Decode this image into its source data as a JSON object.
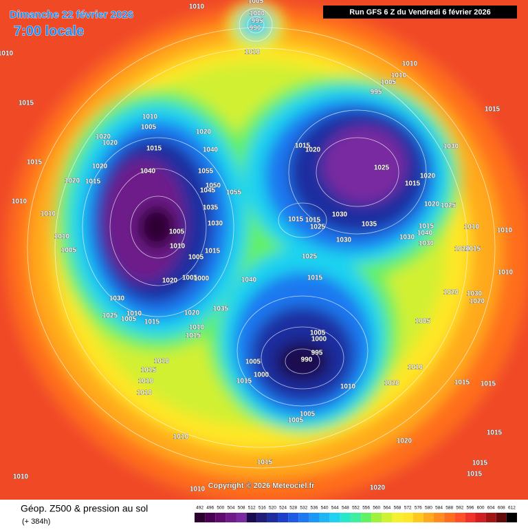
{
  "header": {
    "date": "Dimanche 22 février 2026",
    "time": "7:00 locale",
    "run": "Run GFS 6 Z du Vendredi 6 février 2026"
  },
  "copyright": "Copyright © 2026 Meteociel.fr",
  "legend": {
    "title": "Géop. Z500 & pression au sol",
    "lead_time": "(+ 384h)",
    "colorbar": {
      "values": [
        492,
        496,
        500,
        504,
        508,
        512,
        516,
        520,
        524,
        528,
        532,
        536,
        540,
        544,
        548,
        552,
        556,
        560,
        564,
        568,
        572,
        576,
        580,
        584,
        588,
        592,
        596,
        600,
        604,
        608,
        612
      ],
      "colors": [
        "#2d0030",
        "#4a0050",
        "#5e0a6e",
        "#6e1a8a",
        "#7a2aa0",
        "#1a0a50",
        "#1e1e78",
        "#1e2ea0",
        "#1e40c8",
        "#1e5ae6",
        "#1e78f0",
        "#1e96f5",
        "#1eb4f5",
        "#1ed2f0",
        "#28e6c8",
        "#3cf0a0",
        "#64f064",
        "#a0f03c",
        "#d2f032",
        "#f5f032",
        "#ffe628",
        "#ffc81e",
        "#ffaa1e",
        "#ff8c1e",
        "#ff6e1e",
        "#ff5028",
        "#f03228",
        "#d21e1e",
        "#a01414",
        "#640a0a",
        "#000000"
      ]
    }
  },
  "isobar_labels": [
    "1010",
    "1005",
    "1000",
    "995",
    "990",
    "1010",
    "1010",
    "1010",
    "1010",
    "1005",
    "995",
    "1015",
    "1015",
    "1010",
    "1005",
    "1020",
    "1020",
    "1020",
    "1015",
    "1040",
    "1015",
    "1020",
    "1030",
    "1015",
    "1020",
    "1040",
    "1055",
    "1025",
    "1020",
    "1015",
    "1050",
    "1045",
    "1055",
    "1015",
    "1020",
    "1010",
    "1020",
    "1025",
    "1035",
    "1010",
    "1015",
    "1015",
    "1030",
    "1030",
    "1035",
    "1025",
    "1005",
    "1015",
    "1040",
    "1010",
    "1010",
    "1030",
    "1030",
    "1010",
    "1030",
    "1015",
    "1020",
    "1015",
    "1005",
    "1025",
    "1005",
    "1040",
    "1015",
    "1020",
    "1005",
    "1000",
    "1010",
    "1010",
    "1030",
    "1035",
    "1020",
    "1030",
    "1020",
    "1025",
    "1010",
    "1005",
    "1015",
    "1020",
    "1010",
    "1015",
    "1005",
    "1005",
    "1000",
    "995",
    "990",
    "1010",
    "1005",
    "1015",
    "1000",
    "1010",
    "1010",
    "1015",
    "1010",
    "1020",
    "1015",
    "1015",
    "1010",
    "1005",
    "1005",
    "1010",
    "1015",
    "1020",
    "1015",
    "1015",
    "1015",
    "1010",
    "1010",
    "1020"
  ]
}
